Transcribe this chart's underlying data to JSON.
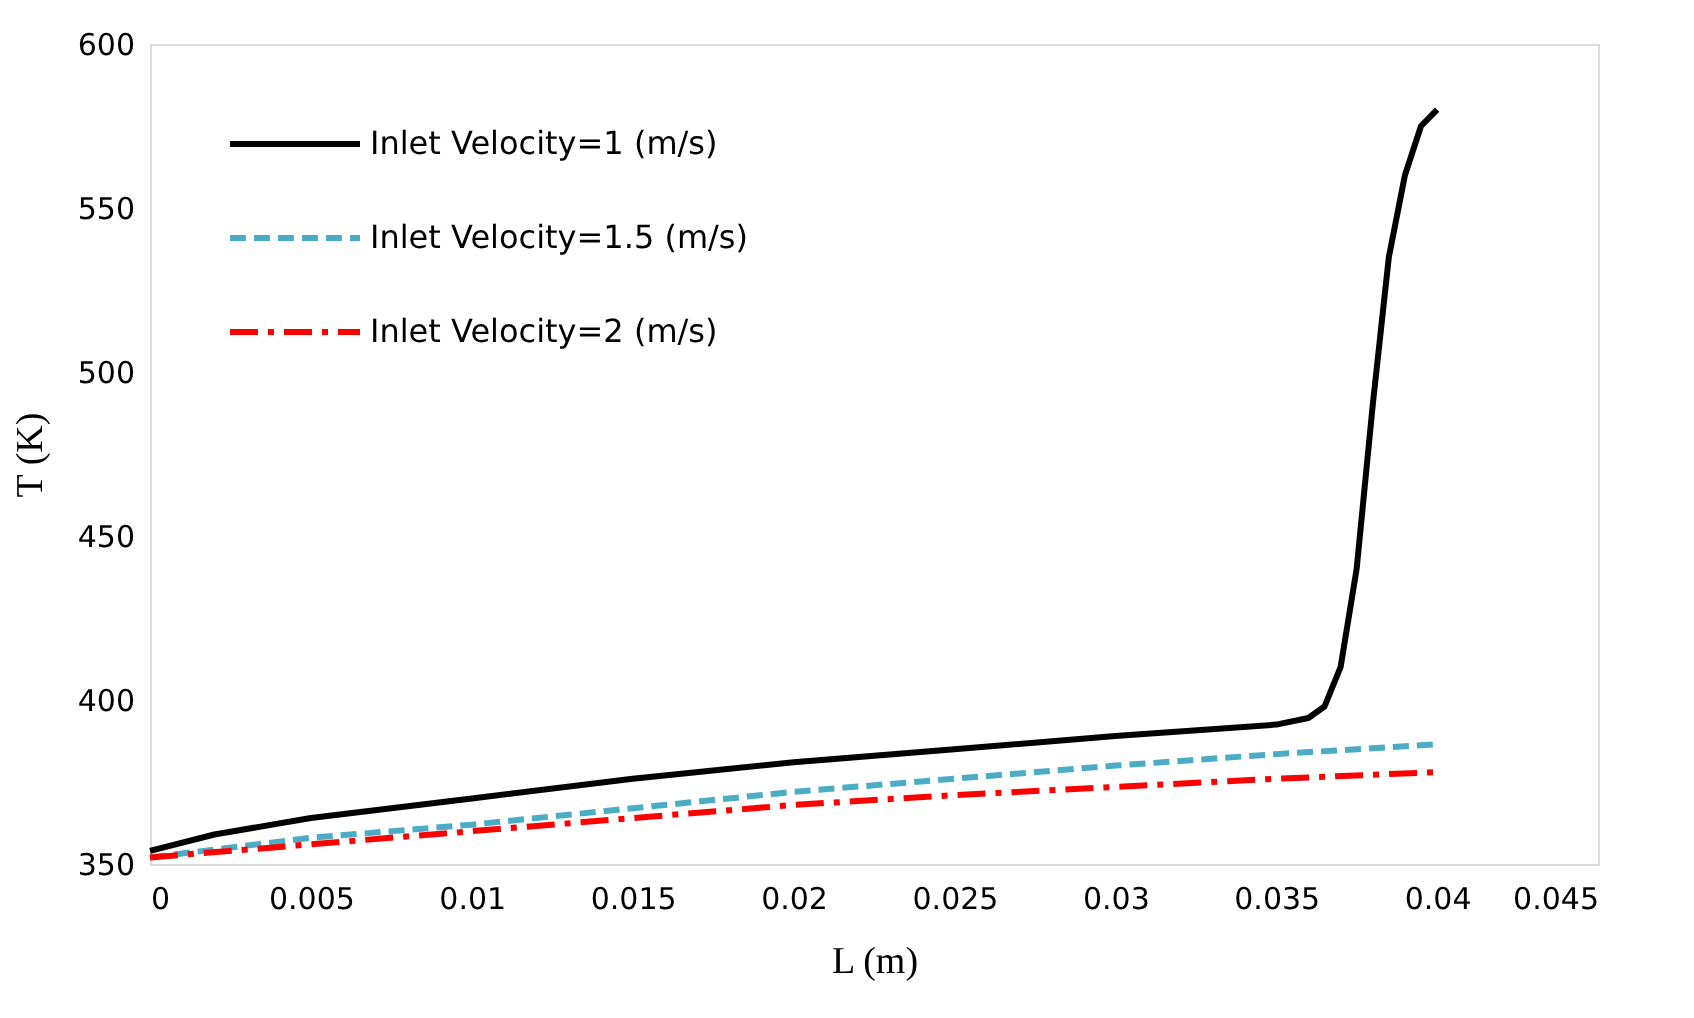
{
  "chart_data": {
    "type": "line",
    "xlabel": "L (m)",
    "ylabel": "T (K)",
    "xlim": [
      0,
      0.045
    ],
    "ylim": [
      350,
      600
    ],
    "xticks": [
      0,
      0.005,
      0.01,
      0.015,
      0.02,
      0.025,
      0.03,
      0.035,
      0.04,
      0.045
    ],
    "yticks": [
      350,
      400,
      450,
      500,
      550,
      600
    ],
    "grid": false,
    "legend": "top left",
    "marker": "none",
    "series": [
      {
        "name": "Inlet Velocity=1 (m/s)",
        "color": "#000000",
        "line_style": "solid",
        "x": [
          0,
          0.002,
          0.005,
          0.01,
          0.015,
          0.02,
          0.025,
          0.03,
          0.035,
          0.036,
          0.0365,
          0.037,
          0.0375,
          0.038,
          0.0385,
          0.039,
          0.0395,
          0.04
        ],
        "values": [
          354,
          359,
          364,
          370,
          376,
          381,
          385,
          389,
          392.5,
          394.5,
          398,
          410,
          440,
          490,
          535,
          560,
          575,
          580
        ]
      },
      {
        "name": "Inlet Velocity=1.5 (m/s)",
        "color": "#4bacc6",
        "line_style": "dashed",
        "x": [
          0,
          0.005,
          0.01,
          0.015,
          0.02,
          0.025,
          0.03,
          0.035,
          0.04
        ],
        "values": [
          352,
          358,
          362,
          367,
          372,
          376,
          380,
          383.5,
          386.5
        ]
      },
      {
        "name": "Inlet Velocity=2 (m/s)",
        "color": "#ff0000",
        "line_style": "dashdot",
        "x": [
          0,
          0.005,
          0.01,
          0.015,
          0.02,
          0.025,
          0.03,
          0.035,
          0.04
        ],
        "values": [
          352,
          356,
          360,
          364,
          368,
          371,
          373.5,
          376,
          378
        ]
      }
    ]
  }
}
